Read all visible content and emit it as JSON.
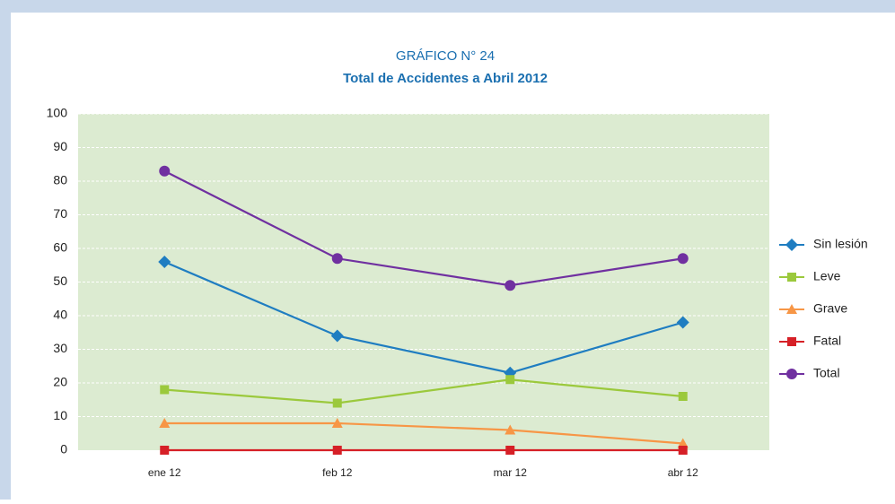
{
  "chart_data": {
    "type": "line",
    "title": "GRÁFICO N° 24",
    "subtitle": "Total de Accidentes a Abril 2012",
    "categories": [
      "ene 12",
      "feb 12",
      "mar 12",
      "abr 12"
    ],
    "series": [
      {
        "name": "Sin lesión",
        "color": "#1f7dc1",
        "marker": "diamond",
        "values": [
          56,
          34,
          23,
          38
        ]
      },
      {
        "name": "Leve",
        "color": "#9bc93c",
        "marker": "square",
        "values": [
          18,
          14,
          21,
          16
        ]
      },
      {
        "name": "Grave",
        "color": "#f79646",
        "marker": "triangle",
        "values": [
          8,
          8,
          6,
          2
        ]
      },
      {
        "name": "Fatal",
        "color": "#d62027",
        "marker": "square",
        "values": [
          0,
          0,
          0,
          0
        ]
      },
      {
        "name": "Total",
        "color": "#7030a0",
        "marker": "circle",
        "values": [
          83,
          57,
          49,
          57
        ]
      }
    ],
    "ylim": [
      0,
      100
    ],
    "yticks": [
      0,
      10,
      20,
      30,
      40,
      50,
      60,
      70,
      80,
      90,
      100
    ],
    "grid": true,
    "legend": "right"
  }
}
